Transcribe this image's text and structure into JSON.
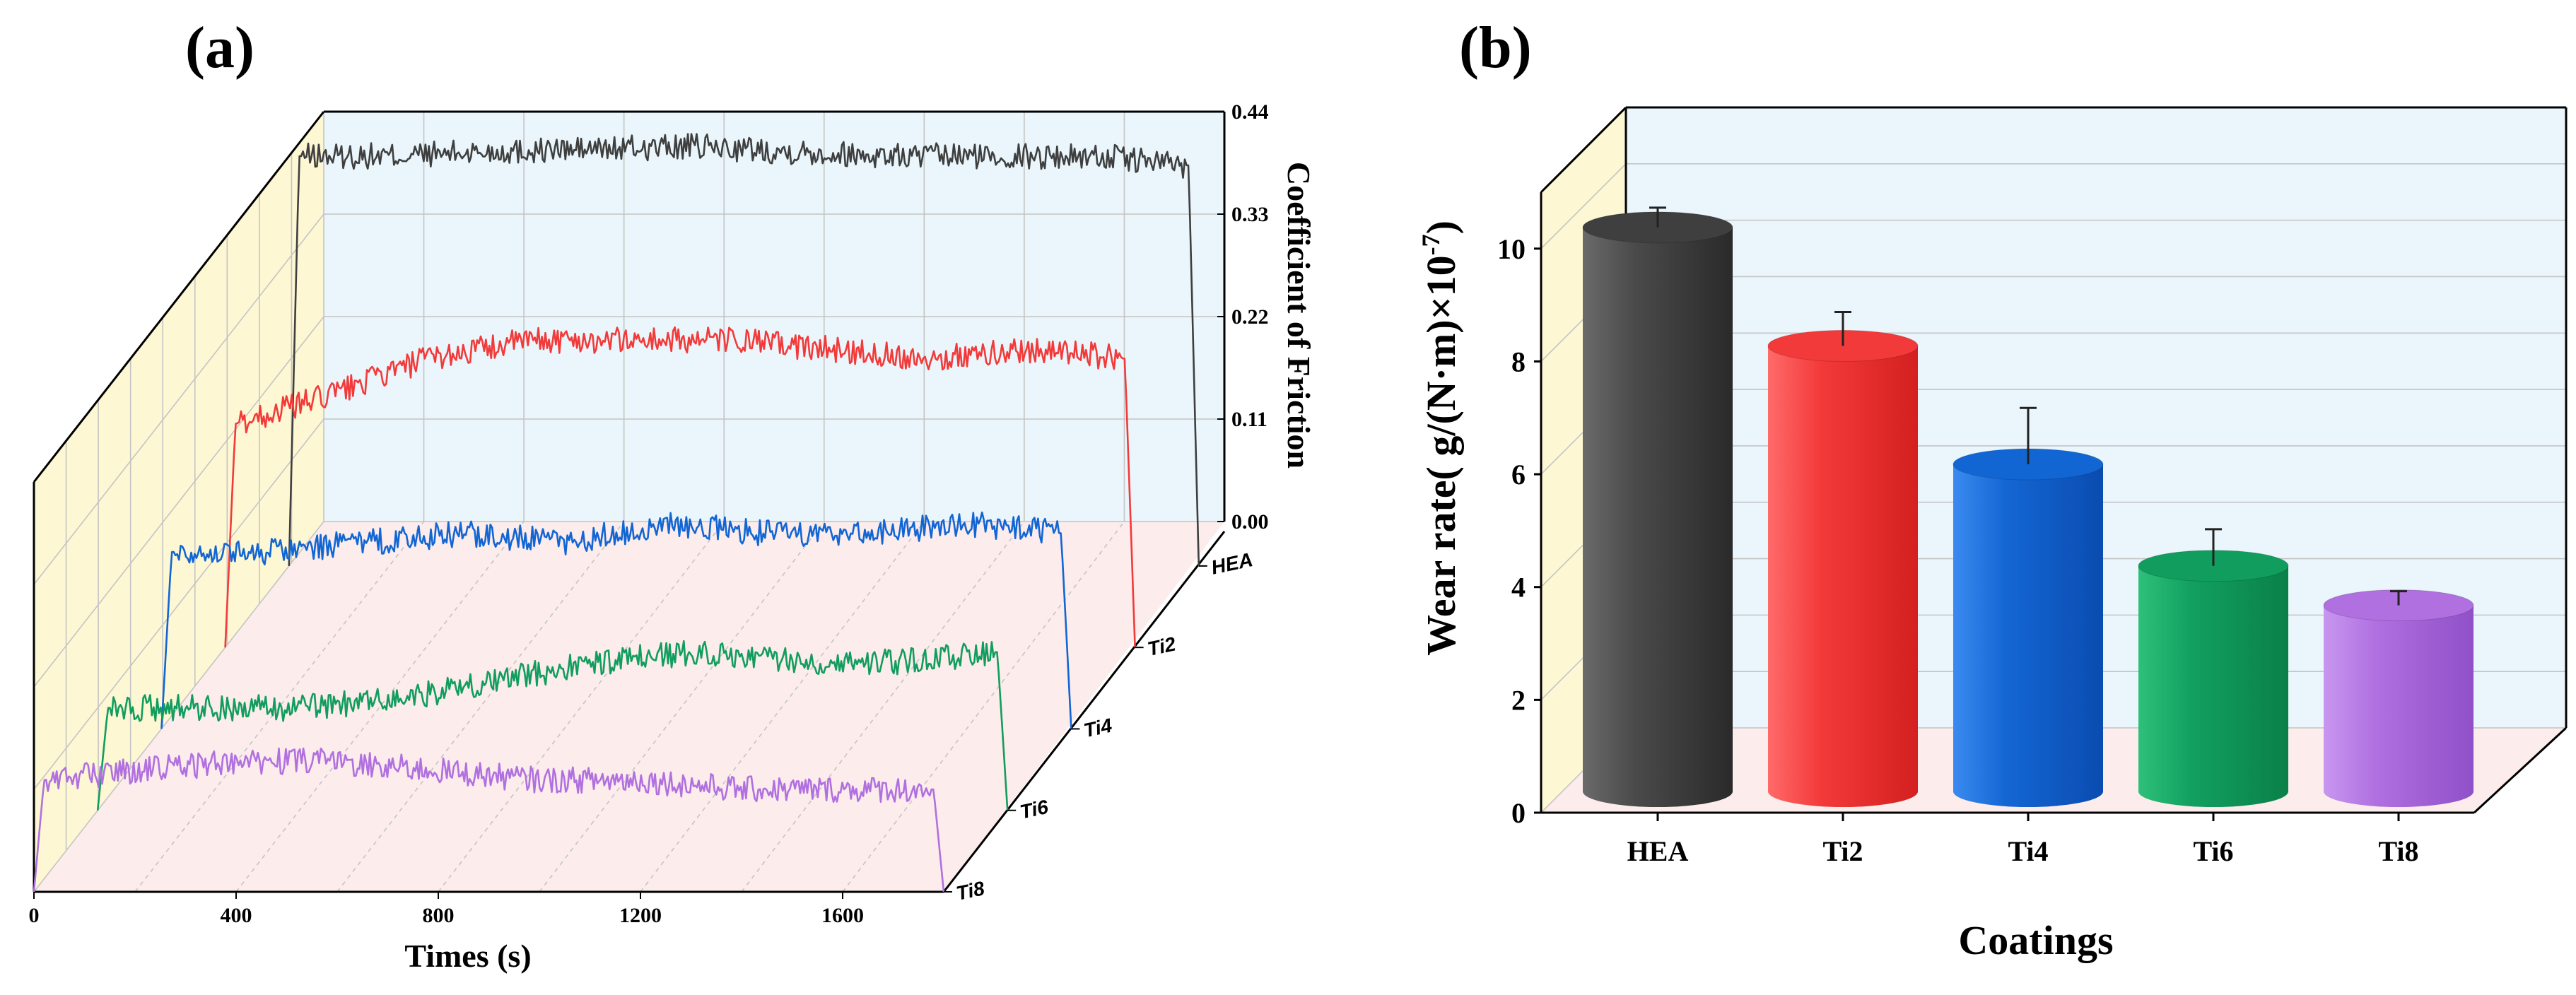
{
  "panel_a": {
    "label": "(a)",
    "xlabel": "Times (s)",
    "zlabel": "Coefficient of Friction"
  },
  "panel_b": {
    "label": "(b)",
    "xlabel": "Coatings",
    "ylabel_main": "Wear rate( g/(N·m)×10",
    "ylabel_exp": "-7",
    "ylabel_close": ")"
  },
  "colors": {
    "HEA": "#3f3f3f",
    "Ti2": "#f23a3a",
    "Ti4": "#1266d4",
    "Ti6": "#119d5e",
    "Ti8": "#b070e0",
    "wall_back": "#eaf6fb",
    "wall_side": "#fdf7d4",
    "floor": "#fcecec"
  },
  "chart_data": [
    {
      "type": "line",
      "title": "",
      "xlabel": "Times (s)",
      "ylabel": "Coefficient of Friction",
      "x_ticks": [
        "0",
        "400",
        "800",
        "1200",
        "1600"
      ],
      "xlim": [
        0,
        1800
      ],
      "y_ticks": [
        "0.00",
        "0.11",
        "0.22",
        "0.33",
        "0.44"
      ],
      "ylim": [
        0,
        0.44
      ],
      "series_axis_labels": [
        "HEA",
        "Ti2",
        "Ti4",
        "Ti6",
        "Ti8"
      ],
      "series": [
        {
          "name": "HEA",
          "values": [
            [
              0,
              0.0
            ],
            [
              20,
              0.44
            ],
            [
              200,
              0.44
            ],
            [
              400,
              0.445
            ],
            [
              800,
              0.45
            ],
            [
              1200,
              0.44
            ],
            [
              1600,
              0.44
            ],
            [
              1780,
              0.43
            ],
            [
              1800,
              0.0
            ]
          ]
        },
        {
          "name": "Ti2",
          "values": [
            [
              0,
              0.0
            ],
            [
              20,
              0.24
            ],
            [
              200,
              0.27
            ],
            [
              400,
              0.31
            ],
            [
              600,
              0.33
            ],
            [
              800,
              0.33
            ],
            [
              1000,
              0.33
            ],
            [
              1200,
              0.32
            ],
            [
              1400,
              0.31
            ],
            [
              1600,
              0.32
            ],
            [
              1780,
              0.31
            ],
            [
              1800,
              0.0
            ]
          ]
        },
        {
          "name": "Ti4",
          "values": [
            [
              0,
              0.0
            ],
            [
              20,
              0.19
            ],
            [
              200,
              0.19
            ],
            [
              400,
              0.2
            ],
            [
              600,
              0.21
            ],
            [
              800,
              0.2
            ],
            [
              1000,
              0.22
            ],
            [
              1200,
              0.21
            ],
            [
              1400,
              0.21
            ],
            [
              1600,
              0.22
            ],
            [
              1780,
              0.21
            ],
            [
              1800,
              0.0
            ]
          ]
        },
        {
          "name": "Ti6",
          "values": [
            [
              0,
              0.0
            ],
            [
              20,
              0.11
            ],
            [
              200,
              0.11
            ],
            [
              400,
              0.11
            ],
            [
              600,
              0.12
            ],
            [
              800,
              0.14
            ],
            [
              1000,
              0.16
            ],
            [
              1200,
              0.17
            ],
            [
              1400,
              0.16
            ],
            [
              1600,
              0.16
            ],
            [
              1780,
              0.17
            ],
            [
              1800,
              0.0
            ]
          ]
        },
        {
          "name": "Ti8",
          "values": [
            [
              0,
              0.0
            ],
            [
              20,
              0.12
            ],
            [
              200,
              0.13
            ],
            [
              400,
              0.14
            ],
            [
              600,
              0.14
            ],
            [
              800,
              0.13
            ],
            [
              1000,
              0.12
            ],
            [
              1200,
              0.12
            ],
            [
              1400,
              0.11
            ],
            [
              1600,
              0.11
            ],
            [
              1780,
              0.11
            ],
            [
              1800,
              0.0
            ]
          ]
        }
      ]
    },
    {
      "type": "bar",
      "title": "",
      "xlabel": "Coatings",
      "ylabel": "Wear rate( g/(N·m)×10-7)",
      "categories": [
        "HEA",
        "Ti2",
        "Ti4",
        "Ti6",
        "Ti8"
      ],
      "values": [
        10.0,
        7.9,
        5.8,
        4.0,
        3.3
      ],
      "errors": [
        0.35,
        0.6,
        1.0,
        0.65,
        0.25
      ],
      "y_ticks": [
        "0",
        "2",
        "4",
        "6",
        "8",
        "10"
      ],
      "ylim": [
        0,
        11
      ],
      "grid": true
    }
  ]
}
